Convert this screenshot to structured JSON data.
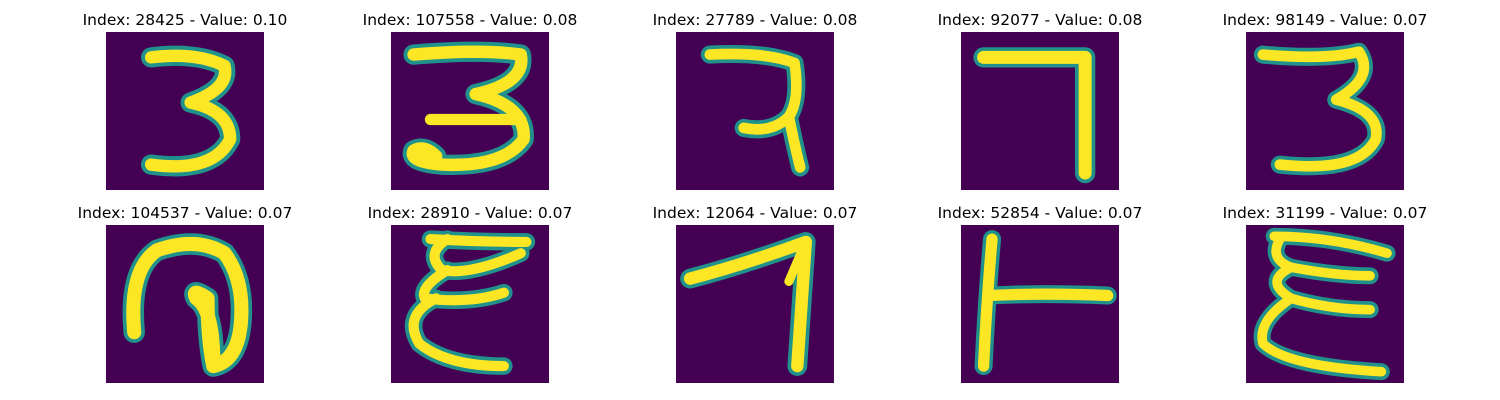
{
  "figure": {
    "colormap": [
      "#440154",
      "#3b528b",
      "#21918c",
      "#5ec962",
      "#fde725"
    ],
    "tiles": [
      {
        "title": "Index: 28425 - Value: 0.10",
        "glyph": "3"
      },
      {
        "title": "Index: 107558 - Value: 0.08",
        "glyph": "3"
      },
      {
        "title": "Index: 27789 - Value: 0.08",
        "glyph": "7-hook"
      },
      {
        "title": "Index: 92077 - Value: 0.08",
        "glyph": "7"
      },
      {
        "title": "Index: 98149 - Value: 0.07",
        "glyph": "3"
      },
      {
        "title": "Index: 104537 - Value: 0.07",
        "glyph": "loop"
      },
      {
        "title": "Index: 28910 - Value: 0.07",
        "glyph": "E"
      },
      {
        "title": "Index: 12064 - Value: 0.07",
        "glyph": "7"
      },
      {
        "title": "Index: 52854 - Value: 0.07",
        "glyph": "T-rotated"
      },
      {
        "title": "Index: 31199 - Value: 0.07",
        "glyph": "E"
      }
    ]
  }
}
